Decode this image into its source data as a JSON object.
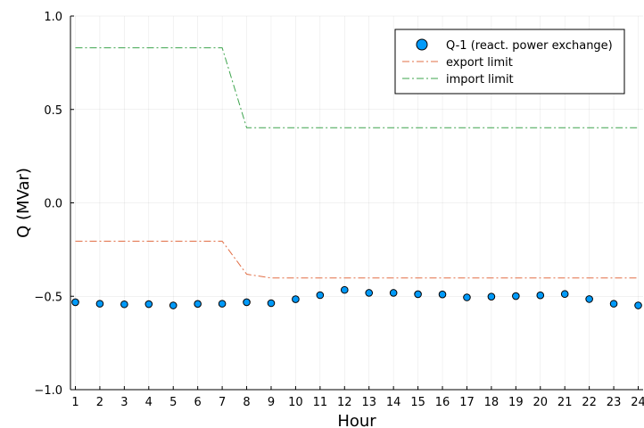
{
  "chart_data": {
    "type": "scatter",
    "xlabel": "Hour",
    "ylabel": "Q (MVar)",
    "xlim": [
      0.8,
      24.2
    ],
    "ylim": [
      -1.0,
      1.0
    ],
    "x_ticks": [
      1,
      2,
      3,
      4,
      5,
      6,
      7,
      8,
      9,
      10,
      11,
      12,
      13,
      14,
      15,
      16,
      17,
      18,
      19,
      20,
      21,
      22,
      23,
      24
    ],
    "y_ticks": [
      -1.0,
      -0.5,
      0.0,
      0.5,
      1.0
    ],
    "y_tick_labels": [
      "−1.0",
      "−0.5",
      "0.0",
      "0.5",
      "1.0"
    ],
    "grid": true,
    "legend_position": "top-right",
    "x": [
      1,
      2,
      3,
      4,
      5,
      6,
      7,
      8,
      9,
      10,
      11,
      12,
      13,
      14,
      15,
      16,
      17,
      18,
      19,
      20,
      21,
      22,
      23,
      24
    ],
    "series": [
      {
        "name": "Q-1 (react. power exchange)",
        "kind": "scatter",
        "color": "#009af9",
        "values": [
          -0.532,
          -0.54,
          -0.543,
          -0.542,
          -0.549,
          -0.541,
          -0.54,
          -0.532,
          -0.537,
          -0.516,
          -0.494,
          -0.466,
          -0.482,
          -0.482,
          -0.489,
          -0.49,
          -0.506,
          -0.502,
          -0.499,
          -0.495,
          -0.488,
          -0.515,
          -0.54,
          -0.549
        ]
      },
      {
        "name": "export limit",
        "kind": "line",
        "style": "dashdot",
        "color": "#e26f46",
        "values": [
          -0.205,
          -0.205,
          -0.205,
          -0.205,
          -0.205,
          -0.205,
          -0.205,
          -0.382,
          -0.402,
          -0.402,
          -0.402,
          -0.402,
          -0.402,
          -0.402,
          -0.402,
          -0.402,
          -0.402,
          -0.402,
          -0.402,
          -0.402,
          -0.402,
          -0.402,
          -0.402,
          -0.402
        ]
      },
      {
        "name": "import limit",
        "kind": "line",
        "style": "dashdot",
        "color": "#3da44d",
        "values": [
          0.83,
          0.83,
          0.83,
          0.83,
          0.83,
          0.83,
          0.83,
          0.402,
          0.402,
          0.402,
          0.402,
          0.402,
          0.402,
          0.402,
          0.402,
          0.402,
          0.402,
          0.402,
          0.402,
          0.402,
          0.402,
          0.402,
          0.402,
          0.402
        ]
      }
    ]
  }
}
